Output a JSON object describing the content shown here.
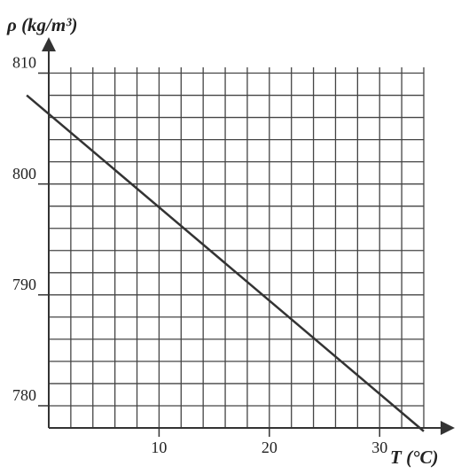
{
  "chart_data": {
    "type": "line",
    "y_label": "ρ (kg/m³)",
    "x_label": "T (°C)",
    "x": [
      -2,
      34
    ],
    "series": [
      {
        "name": "ρ",
        "color": "#333333",
        "values": [
          808,
          777.7
        ]
      }
    ],
    "xlim": [
      0,
      34
    ],
    "ylim": [
      778,
      811
    ],
    "xticks": [
      10,
      20,
      30
    ],
    "yticks": [
      780,
      790,
      800,
      810
    ],
    "xgrid": [
      2,
      4,
      6,
      8,
      10,
      12,
      14,
      16,
      18,
      20,
      22,
      24,
      26,
      28,
      30,
      32,
      34
    ],
    "ygrid": [
      778,
      780,
      782,
      784,
      786,
      788,
      790,
      792,
      794,
      796,
      798,
      800,
      802,
      804,
      806,
      808,
      810
    ],
    "grid": true
  }
}
